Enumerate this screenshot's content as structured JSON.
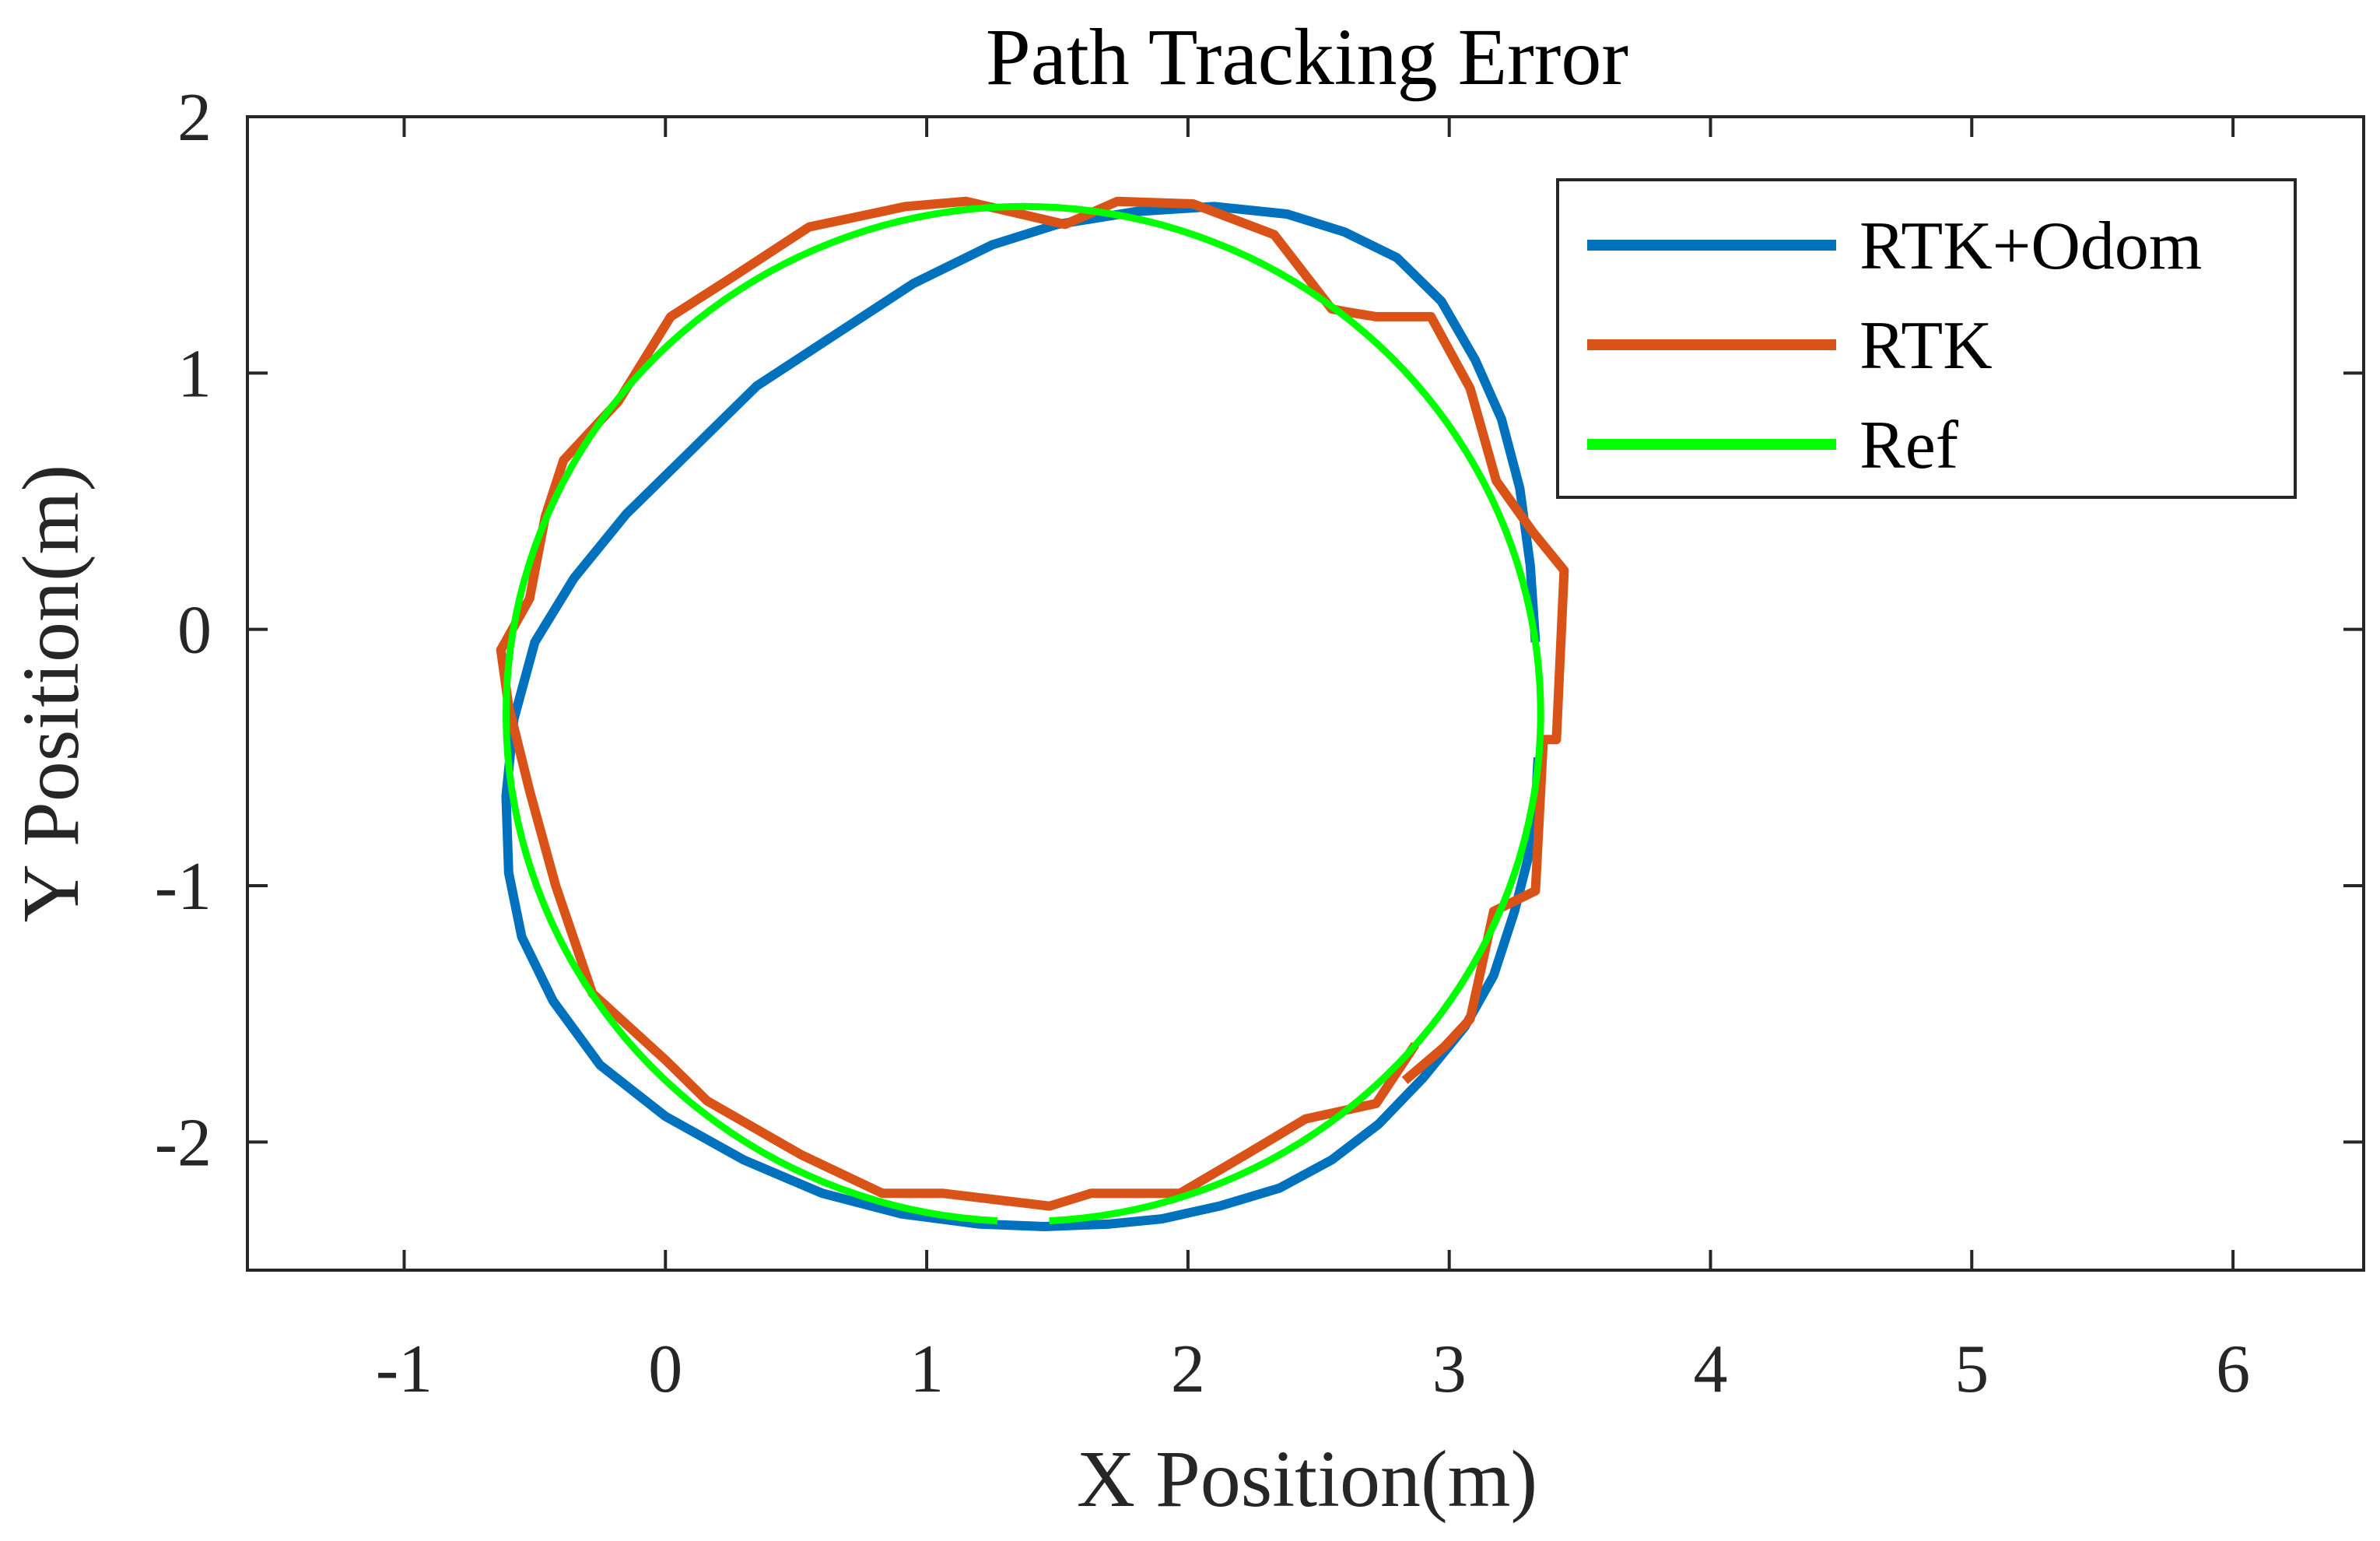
{
  "chart_data": {
    "type": "line",
    "title": "Path Tracking Error",
    "xlabel": "X Position(m)",
    "ylabel": "Y Position(m)",
    "xlim": [
      -1.6,
      6.5
    ],
    "ylim": [
      -2.5,
      2
    ],
    "xticks": [
      -1,
      0,
      1,
      2,
      3,
      4,
      5,
      6
    ],
    "yticks": [
      -2,
      -1,
      0,
      1,
      2
    ],
    "xtick_labels": [
      "-1",
      "0",
      "1",
      "2",
      "3",
      "4",
      "5",
      "6"
    ],
    "ytick_labels": [
      "-2",
      "-1",
      "0",
      "1",
      "2"
    ],
    "grid": false,
    "legend_position": "top-right",
    "series": [
      {
        "name": "RTK+Odom",
        "color": "#0072BD",
        "x": [
          3.34,
          3.33,
          3.3,
          3.25,
          3.17,
          3.06,
          2.9,
          2.73,
          2.55,
          2.35,
          2.12,
          1.9,
          1.7,
          1.45,
          1.2,
          0.9,
          0.6,
          0.3,
          0.0,
          -0.25,
          -0.43,
          -0.55,
          -0.6,
          -0.61,
          -0.58,
          -0.5,
          -0.35,
          -0.15,
          0.1,
          0.35,
          0.65,
          0.95,
          1.25,
          1.5,
          1.8,
          2.1,
          2.38,
          2.6,
          2.8,
          2.97,
          3.1,
          3.2,
          3.27,
          3.31,
          3.33
        ],
        "y": [
          -0.5,
          -0.7,
          -0.9,
          -1.1,
          -1.35,
          -1.55,
          -1.75,
          -1.93,
          -2.07,
          -2.18,
          -2.25,
          -2.3,
          -2.32,
          -2.33,
          -2.32,
          -2.28,
          -2.2,
          -2.07,
          -1.9,
          -1.7,
          -1.45,
          -1.2,
          -0.95,
          -0.65,
          -0.35,
          -0.05,
          0.2,
          0.45,
          0.7,
          0.95,
          1.15,
          1.35,
          1.5,
          1.58,
          1.63,
          1.65,
          1.62,
          1.55,
          1.45,
          1.28,
          1.05,
          0.82,
          0.55,
          0.25,
          -0.05
        ]
      },
      {
        "name": "RTK",
        "color": "#D95319",
        "x": [
          2.83,
          2.98,
          3.08,
          3.17,
          3.33,
          3.36,
          3.41,
          3.44,
          3.32,
          3.18,
          3.08,
          2.93,
          2.85,
          2.72,
          2.6,
          2.55,
          2.33,
          2.02,
          1.73,
          1.53,
          1.15,
          0.92,
          0.55,
          0.25,
          0.02,
          -0.18,
          -0.39,
          -0.46,
          -0.52,
          -0.63,
          -0.6,
          -0.52,
          -0.42,
          -0.28,
          0.0,
          0.16,
          0.52,
          0.83,
          1.06,
          1.47,
          1.63,
          1.97,
          2.22,
          2.45,
          2.72,
          2.87
        ],
        "y": [
          -1.76,
          -1.63,
          -1.52,
          -1.1,
          -1.02,
          -0.43,
          -0.43,
          0.23,
          0.38,
          0.58,
          0.94,
          1.22,
          1.22,
          1.22,
          1.24,
          1.25,
          1.54,
          1.66,
          1.67,
          1.58,
          1.67,
          1.65,
          1.57,
          1.37,
          1.22,
          0.89,
          0.66,
          0.44,
          0.12,
          -0.08,
          -0.3,
          -0.63,
          -1.0,
          -1.42,
          -1.68,
          -1.84,
          -2.05,
          -2.2,
          -2.2,
          -2.25,
          -2.2,
          -2.2,
          -2.05,
          -1.91,
          -1.85,
          -1.62
        ]
      },
      {
        "name": "Ref",
        "color": "#00FF00",
        "center": [
          1.37,
          -0.33
        ],
        "radius": 1.98
      }
    ]
  }
}
